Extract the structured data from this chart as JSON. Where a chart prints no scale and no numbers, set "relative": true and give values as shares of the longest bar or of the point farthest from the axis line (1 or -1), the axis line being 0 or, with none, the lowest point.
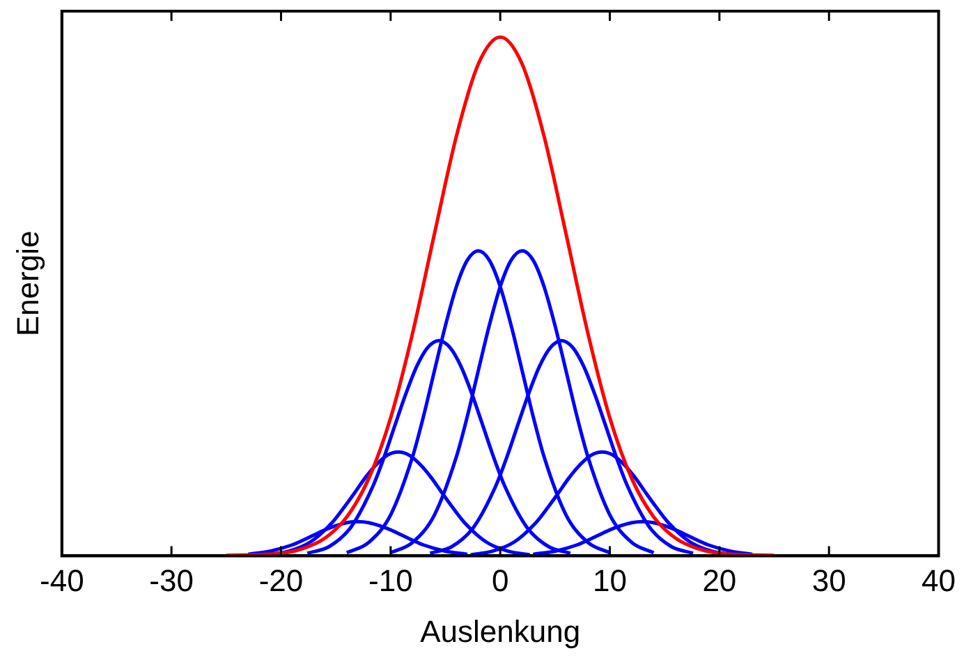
{
  "chart_data": {
    "type": "line",
    "xlabel": "Auslenkung",
    "ylabel": "Energie",
    "relative": true,
    "xlim": [
      -40,
      40
    ],
    "xticks": [
      -40,
      -30,
      -20,
      -10,
      0,
      10,
      20,
      30,
      40
    ],
    "grid": false,
    "legend": false,
    "marker": "none",
    "line_style": "solid",
    "series": [
      {
        "color": "#ff0000",
        "x": [
          -25,
          -20,
          -18,
          -16,
          -14,
          -12,
          -10,
          -8,
          -6,
          -4,
          -2,
          0,
          2,
          4,
          6,
          8,
          10,
          12,
          14,
          16,
          18,
          20,
          25
        ],
        "values": [
          0.001,
          0.005,
          0.014,
          0.034,
          0.075,
          0.149,
          0.266,
          0.429,
          0.621,
          0.809,
          0.948,
          1,
          0.948,
          0.809,
          0.621,
          0.429,
          0.266,
          0.149,
          0.075,
          0.034,
          0.014,
          0.005,
          0.001
        ]
      },
      {
        "color": "#0000ff",
        "x": [
          -14,
          -12,
          -10,
          -8,
          -7,
          -6,
          -5,
          -4,
          -3,
          -2,
          -1,
          0,
          1,
          2,
          3,
          4,
          6,
          8,
          10
        ],
        "values": [
          0.006,
          0.026,
          0.079,
          0.191,
          0.269,
          0.357,
          0.444,
          0.519,
          0.57,
          0.588,
          0.57,
          0.519,
          0.444,
          0.357,
          0.269,
          0.191,
          0.079,
          0.026,
          0.006
        ]
      },
      {
        "color": "#0000ff",
        "x": [
          -10,
          -8,
          -6,
          -4,
          -3,
          -2,
          -1,
          0,
          1,
          2,
          3,
          4,
          5,
          6,
          7,
          8,
          10,
          12,
          14
        ],
        "values": [
          0.006,
          0.026,
          0.079,
          0.191,
          0.269,
          0.357,
          0.444,
          0.519,
          0.57,
          0.588,
          0.57,
          0.519,
          0.444,
          0.357,
          0.269,
          0.191,
          0.079,
          0.026,
          0.006
        ]
      },
      {
        "color": "#0000ff",
        "x": [
          -17.6,
          -15.6,
          -13.6,
          -11.6,
          -10.6,
          -9.6,
          -8.6,
          -7.6,
          -6.6,
          -5.6,
          -4.6,
          -3.6,
          -2.6,
          -1.6,
          -0.6,
          0.4,
          2.4,
          4.4,
          6.4
        ],
        "values": [
          0.005,
          0.018,
          0.056,
          0.135,
          0.19,
          0.252,
          0.313,
          0.366,
          0.402,
          0.415,
          0.402,
          0.366,
          0.313,
          0.252,
          0.19,
          0.135,
          0.056,
          0.018,
          0.005
        ]
      },
      {
        "color": "#0000ff",
        "x": [
          -6.4,
          -4.4,
          -2.4,
          -0.4,
          0.6,
          1.6,
          2.6,
          3.6,
          4.6,
          5.6,
          6.6,
          7.6,
          8.6,
          9.6,
          10.6,
          11.6,
          13.6,
          15.6,
          17.6
        ],
        "values": [
          0.005,
          0.018,
          0.056,
          0.135,
          0.19,
          0.252,
          0.313,
          0.366,
          0.402,
          0.415,
          0.402,
          0.366,
          0.313,
          0.252,
          0.19,
          0.135,
          0.056,
          0.018,
          0.005
        ]
      },
      {
        "color": "#0000ff",
        "x": [
          -21.3,
          -19.3,
          -17.3,
          -15.3,
          -14.3,
          -13.3,
          -12.3,
          -11.3,
          -10.3,
          -9.3,
          -8.3,
          -7.3,
          -6.3,
          -5.3,
          -4.3,
          -3.3,
          -1.3,
          0.7,
          2.7
        ],
        "values": [
          0.002,
          0.009,
          0.027,
          0.065,
          0.092,
          0.121,
          0.151,
          0.176,
          0.194,
          0.2,
          0.194,
          0.176,
          0.151,
          0.121,
          0.092,
          0.065,
          0.027,
          0.009,
          0.002
        ]
      },
      {
        "color": "#0000ff",
        "x": [
          -2.7,
          -0.7,
          1.3,
          3.3,
          4.3,
          5.3,
          6.3,
          7.3,
          8.3,
          9.3,
          10.3,
          11.3,
          12.3,
          13.3,
          14.3,
          15.3,
          17.3,
          19.3,
          21.3
        ],
        "values": [
          0.002,
          0.009,
          0.027,
          0.065,
          0.092,
          0.121,
          0.151,
          0.176,
          0.194,
          0.2,
          0.194,
          0.176,
          0.151,
          0.121,
          0.092,
          0.065,
          0.027,
          0.009,
          0.002
        ]
      },
      {
        "color": "#0000ff",
        "x": [
          -23,
          -21,
          -19,
          -18,
          -17,
          -16,
          -15,
          -14,
          -13,
          -12,
          -11,
          -10,
          -9,
          -8,
          -7,
          -5,
          -3
        ],
        "values": [
          0.003,
          0.009,
          0.021,
          0.03,
          0.04,
          0.05,
          0.058,
          0.064,
          0.066,
          0.064,
          0.058,
          0.05,
          0.04,
          0.03,
          0.021,
          0.009,
          0.003
        ]
      },
      {
        "color": "#0000ff",
        "x": [
          3,
          5,
          7,
          8,
          9,
          10,
          11,
          12,
          13,
          14,
          15,
          16,
          17,
          18,
          19,
          21,
          23
        ],
        "values": [
          0.003,
          0.009,
          0.021,
          0.03,
          0.04,
          0.05,
          0.058,
          0.064,
          0.066,
          0.064,
          0.058,
          0.05,
          0.04,
          0.03,
          0.021,
          0.009,
          0.003
        ]
      }
    ]
  }
}
